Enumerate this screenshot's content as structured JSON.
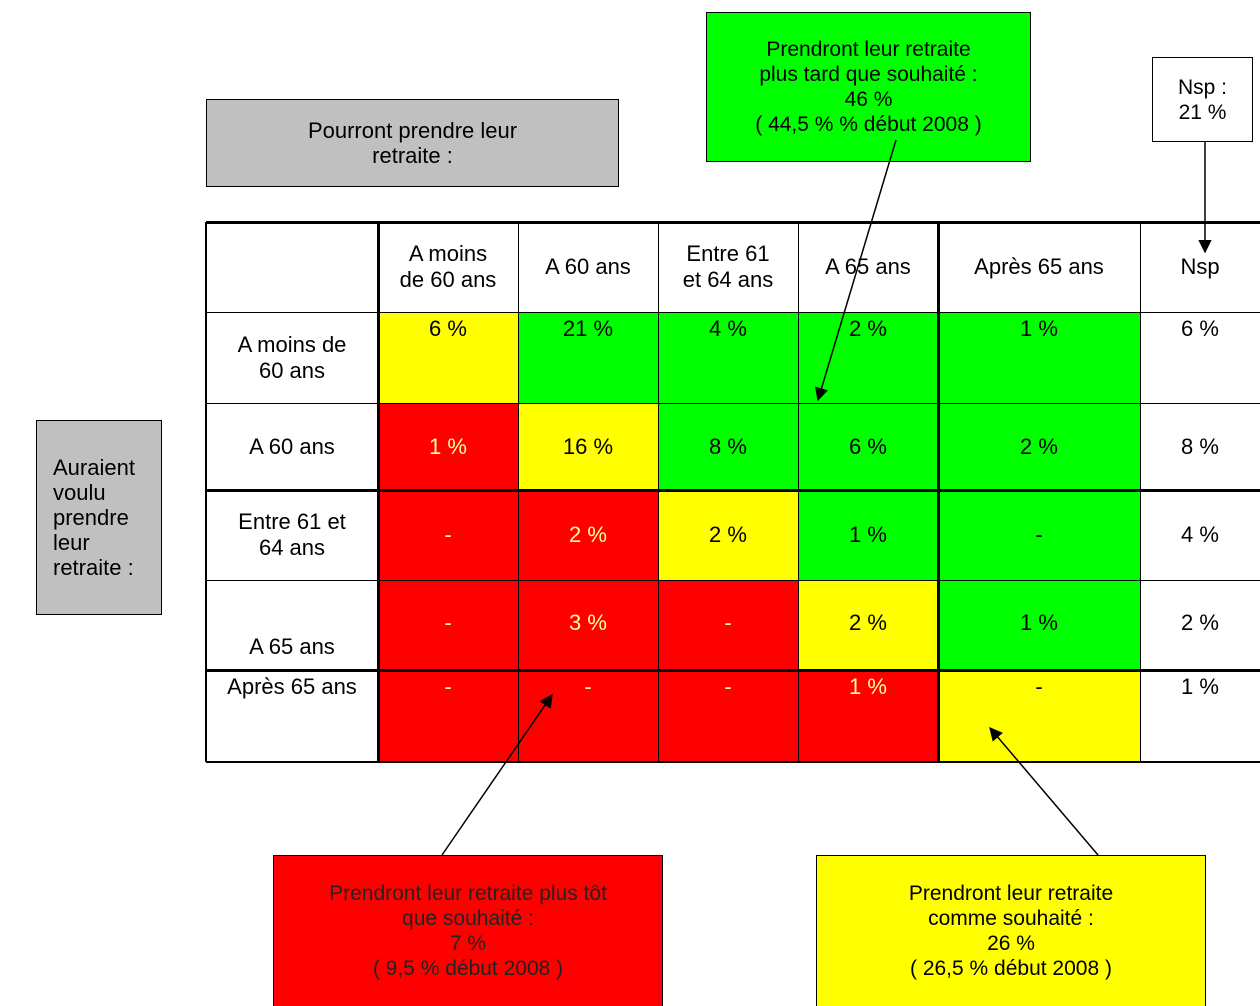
{
  "column_title": [
    "Pourront prendre leur",
    "retraite :"
  ],
  "row_title": [
    "Auraient",
    "voulu",
    "prendre",
    "leur",
    "retraite :"
  ],
  "callouts": {
    "later": {
      "lines": [
        "Prendront leur retraite",
        "plus tard que souhaité :",
        "46 %",
        "( 44,5 % % début 2008 )"
      ],
      "color": "#00ff00"
    },
    "nsp": {
      "lines": [
        "Nsp :",
        "21 %"
      ],
      "color": "#ffffff"
    },
    "earlier": {
      "lines": [
        "Prendront leur retraite plus tôt",
        "que souhaité :",
        "7 %",
        "( 9,5 % début 2008 )"
      ],
      "color": "#ff0000"
    },
    "as_wished": {
      "lines": [
        "Prendront leur retraite",
        "comme souhaité :",
        "26 %",
        "( 26,5 % début 2008 )"
      ],
      "color": "#ffff00"
    }
  },
  "table": {
    "columns": [
      {
        "lines": [
          "A moins",
          "de 60 ans"
        ]
      },
      {
        "lines": [
          "A 60 ans"
        ]
      },
      {
        "lines": [
          "Entre 61",
          "et 64 ans"
        ]
      },
      {
        "lines": [
          "A 65 ans"
        ]
      },
      {
        "lines": [
          "Après 65 ans"
        ]
      },
      {
        "lines": [
          "Nsp"
        ]
      }
    ],
    "rows": [
      {
        "lines": [
          "A moins de",
          "60 ans"
        ],
        "values": [
          "6 %",
          "21 %",
          "4 %",
          "2 %",
          "1 %",
          "6 %"
        ],
        "colors": [
          "yellow",
          "green",
          "green",
          "green",
          "green",
          "white"
        ]
      },
      {
        "lines": [
          "A 60 ans"
        ],
        "values": [
          "1 %",
          "16 %",
          "8 %",
          "6 %",
          "2 %",
          "8 %"
        ],
        "colors": [
          "red",
          "yellow",
          "green",
          "green",
          "green",
          "white"
        ]
      },
      {
        "lines": [
          "Entre 61 et",
          "64 ans"
        ],
        "values": [
          "-",
          "2 %",
          "2 %",
          "1 %",
          "-",
          "4 %"
        ],
        "colors": [
          "red",
          "red",
          "yellow",
          "green",
          "green",
          "white"
        ]
      },
      {
        "lines": [
          "A 65 ans"
        ],
        "values": [
          "-",
          "3 %",
          "-",
          "2 %",
          "1 %",
          "2 %"
        ],
        "colors": [
          "red",
          "red",
          "red",
          "yellow",
          "green",
          "white"
        ]
      },
      {
        "lines": [
          "Après 65 ans"
        ],
        "values": [
          "-",
          "-",
          "-",
          "1 %",
          "-",
          "1 %"
        ],
        "colors": [
          "red",
          "red",
          "red",
          "red",
          "yellow",
          "white"
        ]
      }
    ],
    "palette": {
      "red": "#ff0000",
      "green": "#00ff00",
      "yellow": "#ffff00",
      "white": "#ffffff"
    }
  }
}
